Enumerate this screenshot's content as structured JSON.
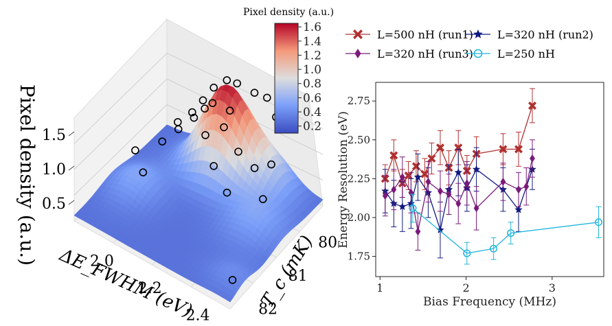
{
  "chart_data": [
    {
      "type": "surface3d",
      "zlabel": "Pixel density (a.u.)",
      "xlabel": "ΔE_FWHM (eV)",
      "ylabel": "T_c (mK)",
      "x_ticks": [
        "2.0",
        "2.2",
        "2.4"
      ],
      "y_ticks": [
        "80",
        "81",
        "82"
      ],
      "z_ticks": [
        "0.5",
        "1.0",
        "1.5"
      ],
      "xlim": [
        1.85,
        2.5
      ],
      "ylim": [
        79.2,
        82.3
      ],
      "zlim": [
        0.2,
        1.7
      ],
      "colorbar": {
        "title": "Pixel density (a.u.)",
        "ticks": [
          "0.2",
          "0.4",
          "0.6",
          "0.8",
          "1.0",
          "1.2",
          "1.4",
          "1.6"
        ],
        "range": [
          0.1,
          1.65
        ],
        "colormap": "coolwarm"
      },
      "points": [
        {
          "x": 1.93,
          "y": 80.9,
          "z": 0.78
        },
        {
          "x": 2.0,
          "y": 81.2,
          "z": 0.72
        },
        {
          "x": 2.02,
          "y": 80.2,
          "z": 1.05
        },
        {
          "x": 2.03,
          "y": 80.8,
          "z": 1.05
        },
        {
          "x": 2.06,
          "y": 80.5,
          "z": 1.15
        },
        {
          "x": 2.08,
          "y": 80.2,
          "z": 1.3
        },
        {
          "x": 2.1,
          "y": 80.0,
          "z": 1.42
        },
        {
          "x": 2.1,
          "y": 80.3,
          "z": 1.3
        },
        {
          "x": 2.12,
          "y": 80.1,
          "z": 1.38
        },
        {
          "x": 2.12,
          "y": 79.8,
          "z": 1.55
        },
        {
          "x": 2.14,
          "y": 80.0,
          "z": 1.45
        },
        {
          "x": 2.15,
          "y": 79.6,
          "z": 1.62
        },
        {
          "x": 2.16,
          "y": 80.4,
          "z": 1.2
        },
        {
          "x": 2.18,
          "y": 79.5,
          "z": 1.58
        },
        {
          "x": 2.2,
          "y": 80.1,
          "z": 1.25
        },
        {
          "x": 2.2,
          "y": 79.9,
          "z": 1.4
        },
        {
          "x": 2.22,
          "y": 80.6,
          "z": 0.95
        },
        {
          "x": 2.24,
          "y": 79.4,
          "z": 1.5
        },
        {
          "x": 2.26,
          "y": 80.1,
          "z": 1.0
        },
        {
          "x": 2.28,
          "y": 79.3,
          "z": 1.45
        },
        {
          "x": 2.3,
          "y": 80.8,
          "z": 0.8
        },
        {
          "x": 2.33,
          "y": 79.4,
          "z": 1.3
        },
        {
          "x": 2.34,
          "y": 80.2,
          "z": 0.95
        },
        {
          "x": 2.36,
          "y": 79.8,
          "z": 0.85
        },
        {
          "x": 2.4,
          "y": 80.4,
          "z": 0.7
        },
        {
          "x": 2.46,
          "y": 81.9,
          "z": 0.35
        }
      ]
    },
    {
      "type": "line",
      "xlabel": "Bias Frequency (MHz)",
      "ylabel": "Energy Resolution (eV)",
      "xlim": [
        0.95,
        3.6
      ],
      "ylim": [
        1.62,
        2.87
      ],
      "x_ticks": [
        1,
        2,
        3
      ],
      "y_ticks": [
        1.75,
        2.0,
        2.25,
        2.5,
        2.75
      ],
      "legend_position": "top",
      "series": [
        {
          "name": "L=500 nH (run1)",
          "color": "#b03030",
          "marker": "x-cross",
          "x": [
            1.06,
            1.16,
            1.26,
            1.33,
            1.42,
            1.52,
            1.6,
            1.7,
            1.8,
            1.91,
            2.01,
            2.12,
            2.43,
            2.61,
            2.77
          ],
          "y": [
            2.25,
            2.4,
            2.22,
            2.27,
            2.33,
            2.28,
            2.38,
            2.45,
            2.32,
            2.45,
            2.3,
            2.41,
            2.44,
            2.44,
            2.72
          ],
          "err": [
            0.09,
            0.1,
            0.09,
            0.09,
            0.1,
            0.1,
            0.1,
            0.11,
            0.11,
            0.11,
            0.1,
            0.11,
            0.1,
            0.11,
            0.11
          ]
        },
        {
          "name": "L=320 nH (run2)",
          "color": "#101a80",
          "marker": "star",
          "x": [
            1.06,
            1.16,
            1.26,
            1.36,
            1.44,
            1.56,
            1.7,
            1.8,
            1.91,
            2.01,
            2.12,
            2.43,
            2.61,
            2.77
          ],
          "y": [
            2.17,
            2.09,
            2.07,
            2.09,
            2.26,
            2.16,
            1.92,
            2.18,
            2.29,
            2.19,
            2.31,
            2.18,
            2.05,
            2.31
          ],
          "err": [
            0.14,
            0.15,
            0.16,
            0.16,
            0.15,
            0.16,
            0.18,
            0.16,
            0.15,
            0.15,
            0.14,
            0.14,
            0.14,
            0.13
          ]
        },
        {
          "name": "L=320 nH (run3)",
          "color": "#7a1a7a",
          "marker": "diamond",
          "x": [
            1.06,
            1.16,
            1.26,
            1.36,
            1.44,
            1.56,
            1.7,
            1.8,
            1.91,
            2.01,
            2.12,
            2.43,
            2.61,
            2.7,
            2.77
          ],
          "y": [
            2.14,
            2.18,
            2.26,
            2.16,
            1.91,
            2.23,
            2.17,
            2.15,
            2.09,
            2.22,
            2.06,
            2.23,
            2.18,
            2.2,
            2.38
          ],
          "err": [
            0.13,
            0.13,
            0.13,
            0.13,
            0.12,
            0.13,
            0.13,
            0.13,
            0.13,
            0.14,
            0.14,
            0.12,
            0.11,
            0.12,
            0.12
          ]
        },
        {
          "name": "L=250 nH",
          "color": "#22b5dd",
          "marker": "circle-open",
          "x": [
            1.38,
            2.01,
            2.32,
            2.52,
            3.54
          ],
          "y": [
            2.06,
            1.77,
            1.8,
            1.9,
            1.97
          ],
          "err": [
            0.09,
            0.07,
            0.07,
            0.07,
            0.1
          ]
        }
      ]
    }
  ]
}
